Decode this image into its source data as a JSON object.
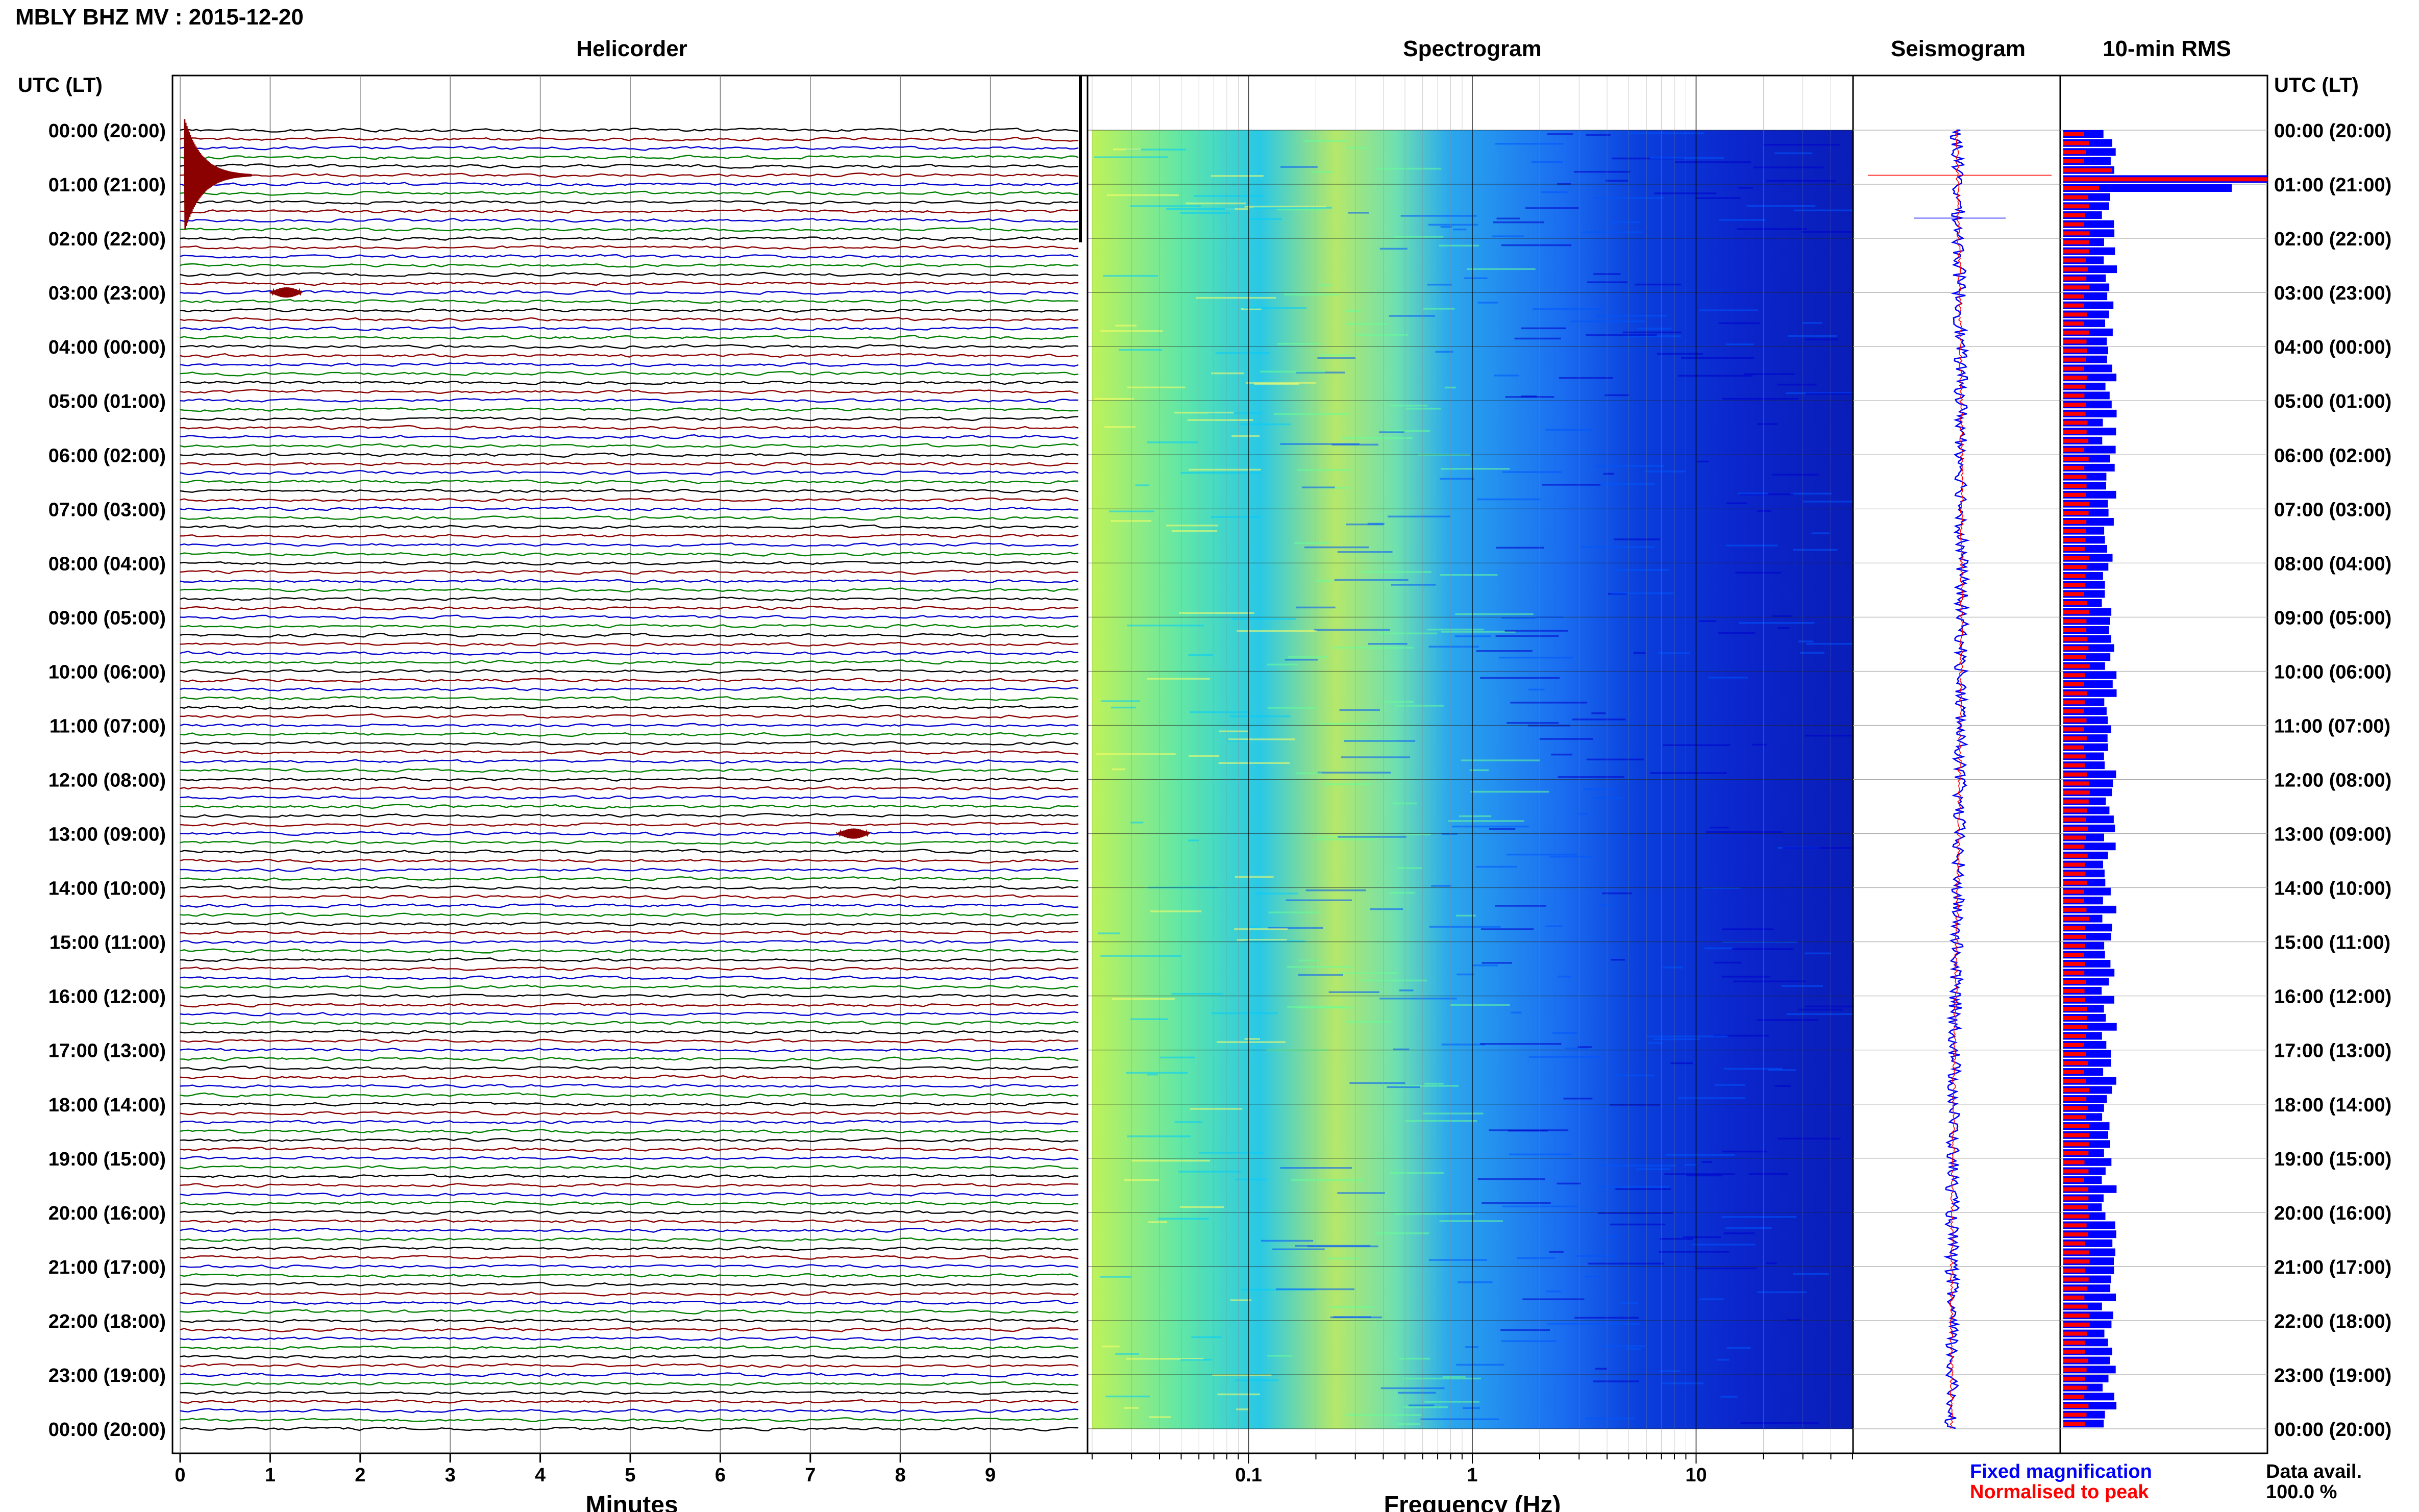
{
  "title": "MBLY BHZ MV : 2015-12-20",
  "panel_titles": {
    "helicorder": "Helicorder",
    "spectrogram": "Spectrogram",
    "seismogram": "Seismogram",
    "rms": "10-min RMS"
  },
  "time_axis_label": "UTC (LT)",
  "time_labels": [
    "00:00 (20:00)",
    "01:00 (21:00)",
    "02:00 (22:00)",
    "03:00 (23:00)",
    "04:00 (00:00)",
    "05:00 (01:00)",
    "06:00 (02:00)",
    "07:00 (03:00)",
    "08:00 (04:00)",
    "09:00 (05:00)",
    "10:00 (06:00)",
    "11:00 (07:00)",
    "12:00 (08:00)",
    "13:00 (09:00)",
    "14:00 (10:00)",
    "15:00 (11:00)",
    "16:00 (12:00)",
    "17:00 (13:00)",
    "18:00 (14:00)",
    "19:00 (15:00)",
    "20:00 (16:00)",
    "21:00 (17:00)",
    "22:00 (18:00)",
    "23:00 (19:00)",
    "00:00 (20:00)"
  ],
  "footer": {
    "fixed_label": "Fixed magnification",
    "norm_label": "Normalised to peak",
    "avail_label": "Data avail.",
    "avail_value": "100.0 %"
  },
  "colors": {
    "trace_cycle": [
      "#000000",
      "#8b0000",
      "#0000cd",
      "#008000"
    ],
    "fixed": "#0000ff",
    "normalised": "#ff0000"
  },
  "chart_data": [
    {
      "type": "line",
      "panel": "helicorder",
      "xlabel": "Minutes",
      "x_ticks": [
        0,
        1,
        2,
        3,
        4,
        5,
        6,
        7,
        8,
        9
      ],
      "xlim": [
        0,
        10
      ],
      "lines_per_hour": 6,
      "hours": 24,
      "events": [
        {
          "time": "00:50",
          "minute": 0.05,
          "color": "#8b0000",
          "amplitude": "large"
        },
        {
          "time": "03:00",
          "minute": 1.0,
          "color": "#8b0000",
          "amplitude": "small"
        },
        {
          "time": "13:00",
          "minute": 7.3,
          "color": "#8b0000",
          "amplitude": "small"
        }
      ]
    },
    {
      "type": "heatmap",
      "panel": "spectrogram",
      "xlabel": "Frequency (Hz)",
      "x_scale": "log",
      "x_ticks": [
        "0.1",
        "1",
        "10"
      ],
      "xlim": [
        0.02,
        50
      ],
      "colormap": [
        "#ffff66",
        "#66ff99",
        "#00ccff",
        "#0055ff",
        "#0000cc"
      ]
    },
    {
      "type": "line",
      "panel": "seismogram",
      "series": [
        {
          "name": "Fixed magnification",
          "color": "#0000ff"
        },
        {
          "name": "Normalised to peak",
          "color": "#ff0000"
        }
      ]
    },
    {
      "type": "bar",
      "panel": "rms",
      "interval_minutes": 10,
      "series": [
        {
          "name": "Fixed magnification",
          "color": "#0000ff"
        },
        {
          "name": "Normalised to peak",
          "color": "#ff0000"
        }
      ],
      "peak_time": "00:50"
    }
  ]
}
